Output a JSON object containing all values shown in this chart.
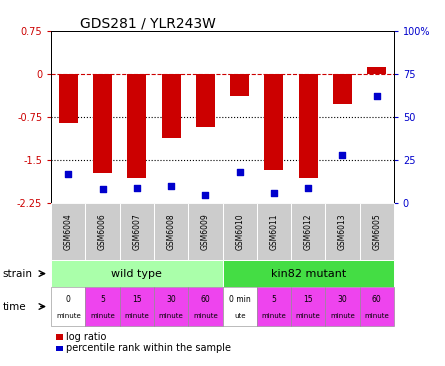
{
  "title": "GDS281 / YLR243W",
  "samples": [
    "GSM6004",
    "GSM6006",
    "GSM6007",
    "GSM6008",
    "GSM6009",
    "GSM6010",
    "GSM6011",
    "GSM6012",
    "GSM6013",
    "GSM6005"
  ],
  "log_ratio": [
    -0.85,
    -1.72,
    -1.82,
    -1.12,
    -0.93,
    -0.38,
    -1.68,
    -1.82,
    -0.52,
    0.12
  ],
  "percentile": [
    17,
    8,
    9,
    10,
    5,
    18,
    6,
    9,
    28,
    62
  ],
  "ylim_left": [
    -2.25,
    0.75
  ],
  "ylim_right": [
    0,
    100
  ],
  "yticks_left": [
    0.75,
    0,
    -0.75,
    -1.5,
    -2.25
  ],
  "yticks_right": [
    100,
    75,
    50,
    25,
    0
  ],
  "bar_color": "#cc0000",
  "dot_color": "#0000cc",
  "bar_width": 0.55,
  "strain_wt_label": "wild type",
  "strain_mut_label": "kin82 mutant",
  "wt_color": "#aaffaa",
  "mut_color": "#44dd44",
  "time_colors": [
    "white",
    "#ee44ee",
    "#ee44ee",
    "#ee44ee",
    "#ee44ee",
    "white",
    "#ee44ee",
    "#ee44ee",
    "#ee44ee",
    "#ee44ee"
  ],
  "time_texts_line1": [
    "0",
    "5",
    "15",
    "30",
    "60",
    "0 min",
    "5",
    "15",
    "30",
    "60"
  ],
  "time_texts_line2": [
    "minute",
    "minute",
    "minute",
    "minute",
    "minute",
    "ute",
    "minute",
    "minute",
    "minute",
    "minute"
  ],
  "xlabel_color_left": "#cc0000",
  "xlabel_color_right": "#0000cc",
  "sample_box_color": "#cccccc",
  "legend_bar_color": "#cc0000",
  "legend_dot_color": "#0000cc"
}
